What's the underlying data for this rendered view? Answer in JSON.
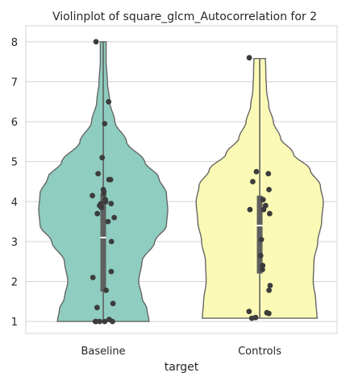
{
  "chart_data": {
    "type": "violin",
    "title": "Violinplot of square_glcm_Autocorrelation for 2",
    "xlabel": "target",
    "ylabel": "",
    "categories": [
      "Baseline",
      "Controls"
    ],
    "ylim": [
      0.7,
      8.4
    ],
    "yticks": [
      1,
      2,
      3,
      4,
      5,
      6,
      7,
      8
    ],
    "grid": true,
    "colors": {
      "Baseline": "#8ecdc0",
      "Controls": "#fafab6",
      "outline": "#666666",
      "points": "#3c3c3c",
      "grid": "#d5d5d5"
    },
    "violins": [
      {
        "category": "Baseline",
        "cut_min": 1.0,
        "cut_max": 8.0,
        "half_width_profile": [
          [
            1.0,
            0.71
          ],
          [
            1.3,
            0.68
          ],
          [
            1.6,
            0.6
          ],
          [
            2.0,
            0.55
          ],
          [
            2.5,
            0.6
          ],
          [
            3.0,
            0.8
          ],
          [
            3.4,
            0.98
          ],
          [
            3.8,
            1.0
          ],
          [
            4.2,
            0.98
          ],
          [
            4.6,
            0.86
          ],
          [
            5.0,
            0.64
          ],
          [
            5.5,
            0.36
          ],
          [
            6.0,
            0.18
          ],
          [
            6.5,
            0.1
          ],
          [
            7.0,
            0.065
          ],
          [
            7.5,
            0.045
          ],
          [
            8.0,
            0.045
          ]
        ],
        "q1": 1.75,
        "median": 3.1,
        "q3": 4.2,
        "whisker_low": 1.0,
        "whisker_high": 8.0,
        "points": [
          8.0,
          6.5,
          5.95,
          5.1,
          4.7,
          4.55,
          4.55,
          4.3,
          4.25,
          4.2,
          4.15,
          4.05,
          4.0,
          3.95,
          3.95,
          3.9,
          3.85,
          3.7,
          3.6,
          3.5,
          3.0,
          2.25,
          2.1,
          1.78,
          1.45,
          1.35,
          1.05,
          1.0,
          1.0,
          1.0,
          1.0,
          1.0
        ]
      },
      {
        "category": "Controls",
        "cut_min": 1.08,
        "cut_max": 7.58,
        "half_width_profile": [
          [
            1.08,
            0.89
          ],
          [
            1.5,
            0.87
          ],
          [
            2.0,
            0.83
          ],
          [
            2.5,
            0.84
          ],
          [
            3.0,
            0.9
          ],
          [
            3.5,
            0.96
          ],
          [
            4.0,
            0.985
          ],
          [
            4.4,
            0.94
          ],
          [
            4.8,
            0.78
          ],
          [
            5.2,
            0.52
          ],
          [
            5.6,
            0.32
          ],
          [
            6.0,
            0.21
          ],
          [
            6.4,
            0.14
          ],
          [
            6.8,
            0.105
          ],
          [
            7.2,
            0.095
          ],
          [
            7.58,
            0.09
          ]
        ],
        "q1": 2.2,
        "median": 3.4,
        "q3": 4.15,
        "whisker_low": 1.08,
        "whisker_high": 7.58,
        "points": [
          7.6,
          4.75,
          4.7,
          4.5,
          4.3,
          4.05,
          3.9,
          3.8,
          3.8,
          3.7,
          3.05,
          2.65,
          2.4,
          2.3,
          1.9,
          1.78,
          1.25,
          1.22,
          1.2,
          1.1,
          1.08
        ]
      }
    ]
  }
}
